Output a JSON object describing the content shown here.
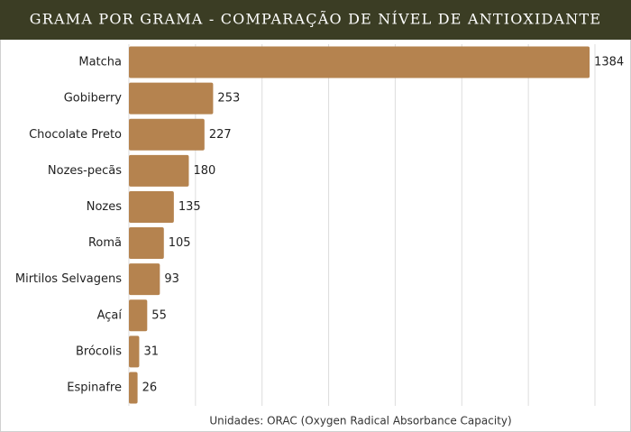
{
  "chart_data": {
    "type": "bar",
    "orientation": "horizontal",
    "title": "GRAMA POR GRAMA - COMPARAÇÃO DE NÍVEL DE ANTIOXIDANTE",
    "categories": [
      "Matcha",
      "Gobiberry",
      "Chocolate Preto",
      "Nozes-pecãs",
      "Nozes",
      "Romã",
      "Mirtilos Selvagens",
      "Açaí",
      "Brócolis",
      "Espinafre"
    ],
    "values": [
      1384,
      253,
      227,
      180,
      135,
      105,
      93,
      55,
      31,
      26
    ],
    "color": "#b5834f",
    "xlim": [
      0,
      1400
    ],
    "xticks": [
      0,
      200,
      400,
      600,
      800,
      1000,
      1200,
      1400
    ],
    "grid": true,
    "caption": "Unidades: ORAC (Oxygen Radical Absorbance Capacity)"
  }
}
